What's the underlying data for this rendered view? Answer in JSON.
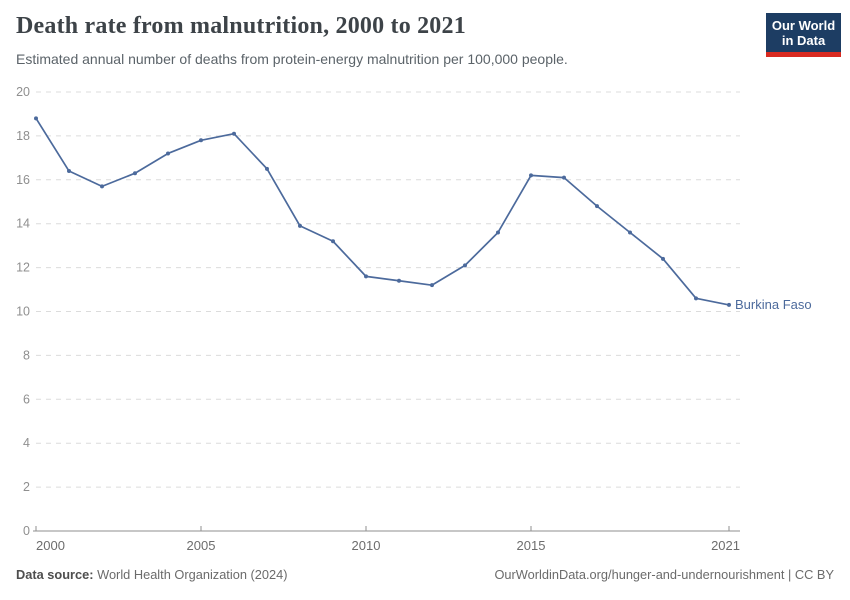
{
  "header": {
    "title": "Death rate from malnutrition, 2000 to 2021",
    "subtitle": "Estimated annual number of deaths from protein-energy malnutrition per 100,000 people.",
    "logo": {
      "line1": "Our World",
      "line2": "in Data",
      "bg": "#1d3d63",
      "bar": "#d92a20"
    }
  },
  "chart_data": {
    "type": "line",
    "title": "Death rate from malnutrition, 2000 to 2021",
    "x": [
      2000,
      2001,
      2002,
      2003,
      2004,
      2005,
      2006,
      2007,
      2008,
      2009,
      2010,
      2011,
      2012,
      2013,
      2014,
      2015,
      2016,
      2017,
      2018,
      2019,
      2020,
      2021
    ],
    "series": [
      {
        "name": "Burkina Faso",
        "color": "#4c6a9c",
        "values": [
          18.8,
          16.4,
          15.7,
          16.3,
          17.2,
          17.8,
          18.1,
          16.5,
          13.9,
          13.2,
          11.6,
          11.4,
          11.2,
          12.1,
          13.6,
          16.2,
          16.1,
          14.8,
          13.6,
          12.4,
          10.6,
          10.3
        ]
      }
    ],
    "xlabel": "",
    "ylabel": "",
    "ylim": [
      0,
      20
    ],
    "yticks": [
      0,
      2,
      4,
      6,
      8,
      10,
      12,
      14,
      16,
      18,
      20
    ],
    "xticks": [
      2000,
      2005,
      2010,
      2015,
      2021
    ],
    "grid": "horizontal-dashed",
    "legend_position": "end-of-line",
    "end_label": "Burkina Faso"
  },
  "footer": {
    "source_label": "Data source:",
    "source_value": "World Health Organization (2024)",
    "link": "OurWorldinData.org/hunger-and-undernourishment | CC BY"
  }
}
